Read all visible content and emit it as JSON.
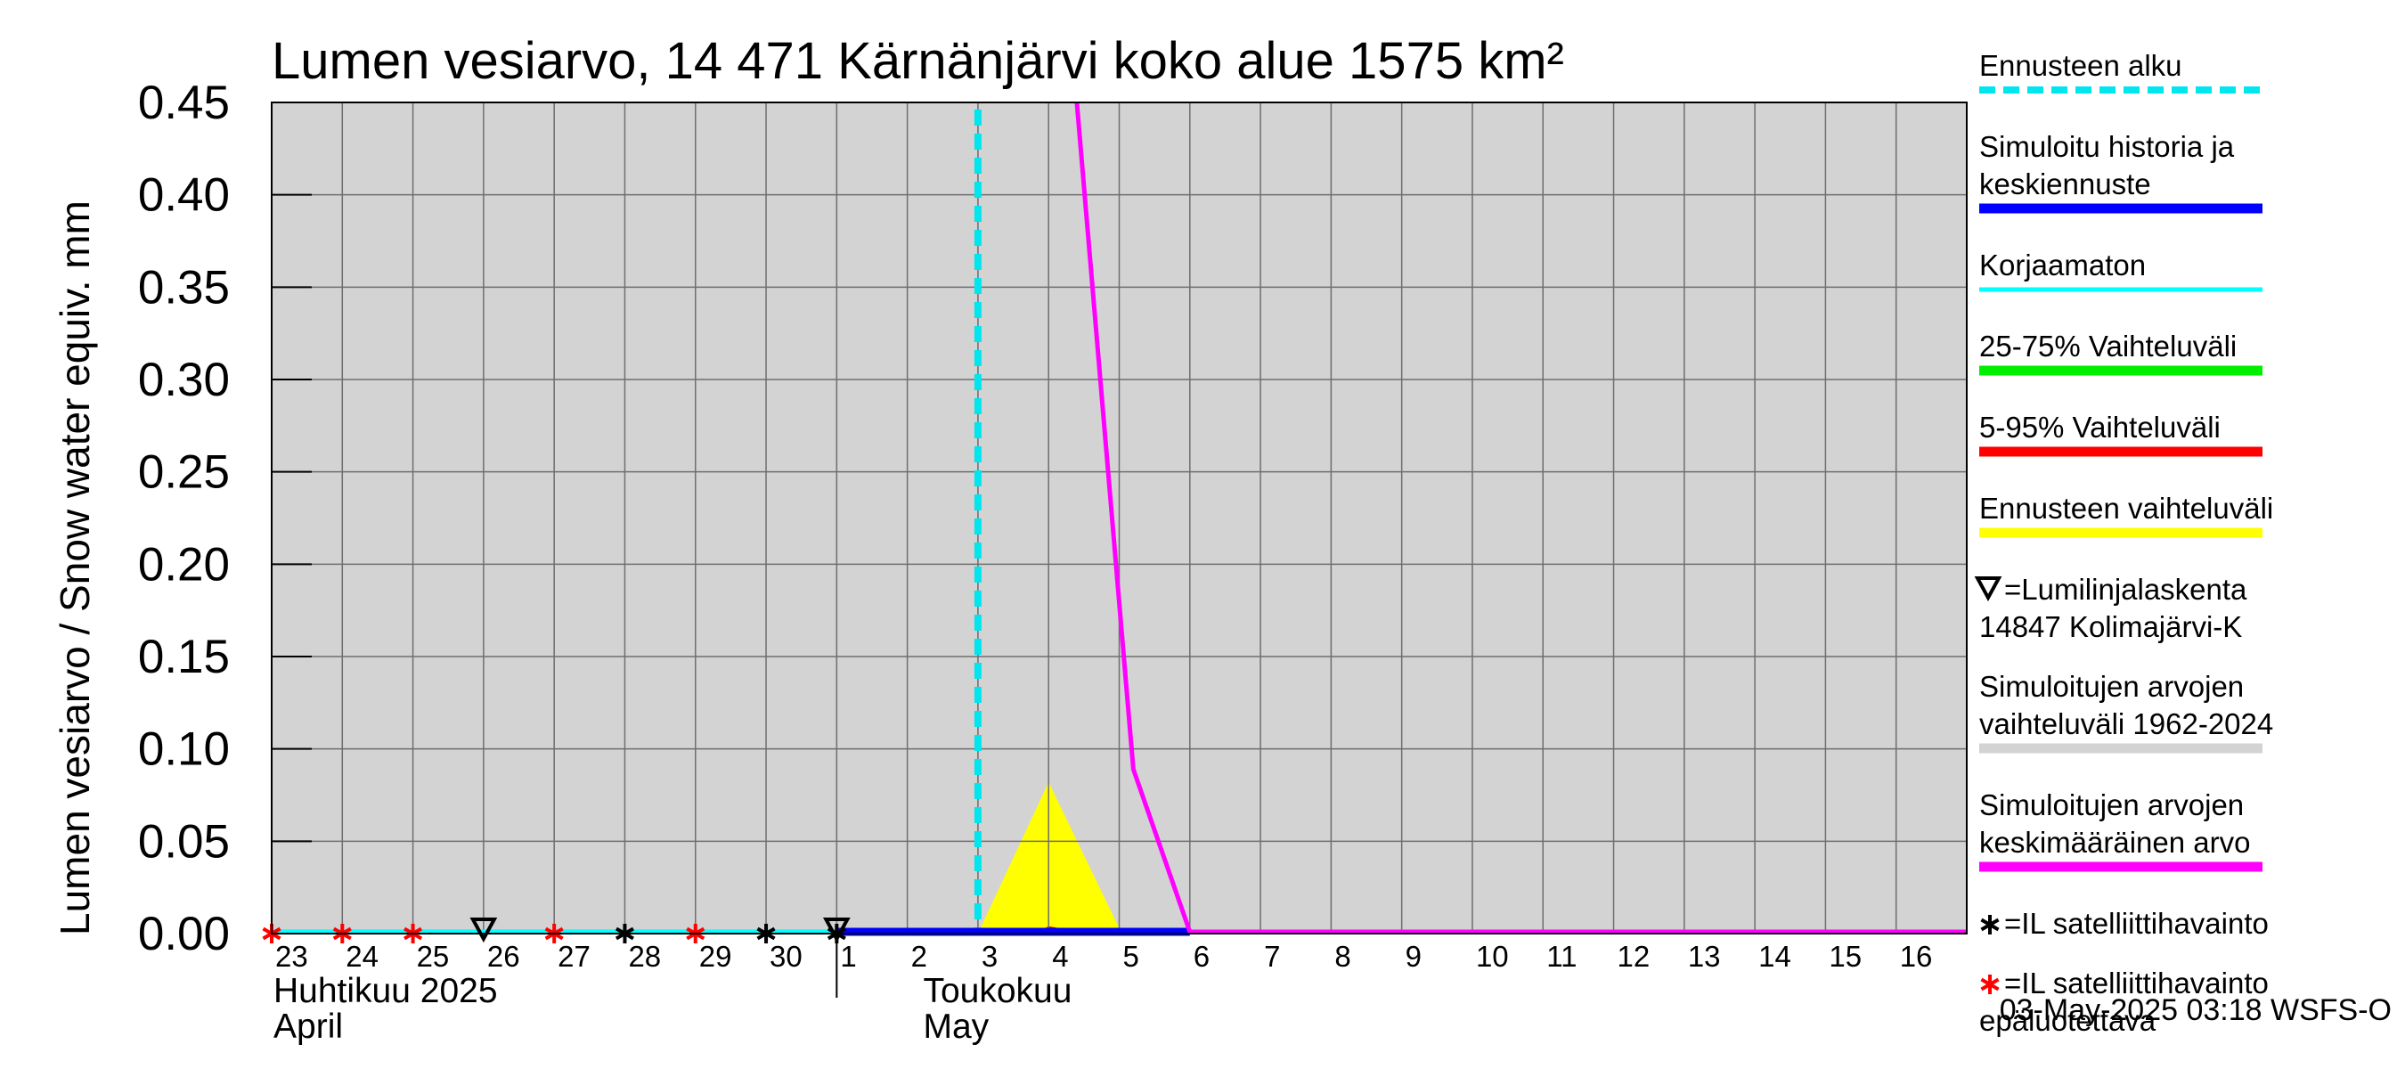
{
  "chart_data": {
    "type": "line",
    "title": "Lumen vesiarvo, 14 471 Kärnänjärvi koko alue 1575 km²",
    "ylabel": "Lumen vesiarvo / Snow water equiv.    mm",
    "ylim": [
      0,
      0.45
    ],
    "yticks": [
      "0.00",
      "0.05",
      "0.10",
      "0.15",
      "0.20",
      "0.25",
      "0.30",
      "0.35",
      "0.40",
      "0.45"
    ],
    "ytick_values": [
      0,
      0.05,
      0.1,
      0.15,
      0.2,
      0.25,
      0.3,
      0.35,
      0.4,
      0.45
    ],
    "xlim_days": [
      0,
      24
    ],
    "x_tick_labels": [
      "23",
      "24",
      "25",
      "26",
      "27",
      "28",
      "29",
      "30",
      "1",
      "2",
      "3",
      "4",
      "5",
      "6",
      "7",
      "8",
      "9",
      "10",
      "11",
      "12",
      "13",
      "14",
      "15",
      "16"
    ],
    "month_labels": [
      {
        "line1": "Huhtikuu  2025",
        "line2": "April",
        "day": 0
      },
      {
        "line1": "Toukokuu",
        "line2": "May",
        "day": 9.2
      }
    ],
    "forecast_start_day": 10.0,
    "series": [
      {
        "name": "Simuloitujen arvojen vaihteluväli 1962-2024",
        "kind": "band",
        "color": "#d3d3d3",
        "x": [
          0,
          24
        ],
        "lower": [
          0,
          0
        ],
        "upper": [
          0.45,
          0.45
        ]
      },
      {
        "name": "Ennusteen vaihteluväli",
        "kind": "band",
        "color": "#ffff00",
        "x": [
          10,
          11.0,
          12.0,
          12.2
        ],
        "lower": [
          0,
          0,
          0,
          0
        ],
        "upper": [
          0,
          0.082,
          0.003,
          0
        ]
      },
      {
        "name": "5-95% Vaihteluväli",
        "kind": "band",
        "color": "#ff0000",
        "x": [
          10.8,
          11.0,
          11.6
        ],
        "lower": [
          0,
          0,
          0
        ],
        "upper": [
          0,
          0.004,
          0
        ]
      },
      {
        "name": "Korjaamaton",
        "kind": "line",
        "color": "#00ffff",
        "x": [
          0,
          8
        ],
        "y": [
          0.001,
          0.001
        ]
      },
      {
        "name": "Simuloitu historia ja keskiennuste",
        "kind": "line",
        "color": "#0000ff",
        "x": [
          8,
          13
        ],
        "y": [
          0,
          0
        ]
      },
      {
        "name": "Simuloitujen arvojen keskimääräinen arvo",
        "kind": "line",
        "color": "#ff00ff",
        "x": [
          11.4,
          12.2,
          13.0,
          24
        ],
        "y": [
          0.45,
          0.089,
          0,
          0
        ]
      }
    ],
    "markers": [
      {
        "name": "IL satelliittihavainto epäluotettava",
        "symbol": "red-star",
        "days": [
          0,
          1,
          2,
          4,
          6
        ]
      },
      {
        "name": "IL satelliittihavainto",
        "symbol": "black-star",
        "days": [
          5,
          7,
          8
        ]
      },
      {
        "name": "Lumilinjalaskenta",
        "symbol": "triangle-down",
        "days": [
          3,
          8
        ]
      }
    ]
  },
  "legend": [
    {
      "lines": [
        "Ennusteen alku"
      ],
      "color": "#00e5ee",
      "style": "dashed"
    },
    {
      "lines": [
        "Simuloitu historia ja",
        "keskiennuste"
      ],
      "color": "#0000ff",
      "style": "solid"
    },
    {
      "lines": [
        "Korjaamaton"
      ],
      "color": "#00ffff",
      "style": "solid"
    },
    {
      "lines": [
        "25-75% Vaihteluväli"
      ],
      "color": "#00ee00",
      "style": "solid"
    },
    {
      "lines": [
        "5-95% Vaihteluväli"
      ],
      "color": "#ff0000",
      "style": "solid"
    },
    {
      "lines": [
        "Ennusteen vaihteluväli"
      ],
      "color": "#ffff00",
      "style": "solid"
    },
    {
      "lines": [
        "=Lumilinjalaskenta",
        "14847 Kolimajärvi-K"
      ],
      "color": "#000000",
      "style": "triangle"
    },
    {
      "lines": [
        "Simuloitujen arvojen",
        "vaihteluväli 1962-2024"
      ],
      "color": "#d3d3d3",
      "style": "solid"
    },
    {
      "lines": [
        "Simuloitujen arvojen",
        "keskimääräinen arvo"
      ],
      "color": "#ff00ff",
      "style": "solid"
    },
    {
      "lines": [
        "=IL satelliittihavainto"
      ],
      "color": "#000000",
      "style": "star"
    },
    {
      "lines": [
        "=IL satelliittihavainto",
        "epäluotettava"
      ],
      "color": "#ff0000",
      "style": "star"
    }
  ],
  "footer": "03-May-2025 03:18 WSFS-O"
}
